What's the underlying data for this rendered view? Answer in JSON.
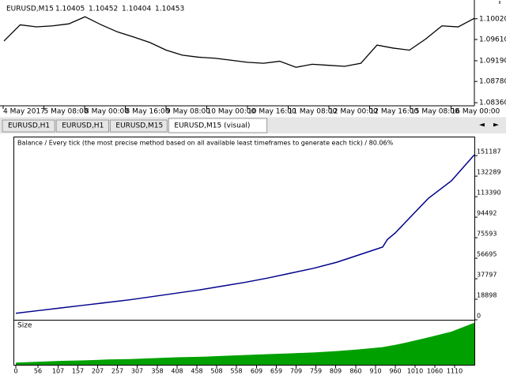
{
  "price_chart": {
    "type": "line",
    "symbol": "EURUSD,M15",
    "ohlc": [
      "1.10405",
      "1.10452",
      "1.10404",
      "1.10453"
    ],
    "values": [
      1.0958,
      1.099,
      1.0986,
      1.0988,
      1.0992,
      1.1006,
      1.099,
      1.0976,
      1.0966,
      1.0955,
      1.094,
      1.093,
      1.0926,
      1.0924,
      1.092,
      1.0916,
      1.0914,
      1.0918,
      1.0906,
      1.0912,
      1.091,
      1.0908,
      1.0914,
      1.095,
      1.0944,
      1.094,
      1.0962,
      1.0988,
      1.0986,
      1.1003
    ],
    "color": "#000000",
    "ylim": [
      1.08283,
      1.10329
    ],
    "yticks": [
      {
        "value": 1.1002,
        "label": "1.10020"
      },
      {
        "value": 1.0961,
        "label": "1.09610"
      },
      {
        "value": 1.0919,
        "label": "1.09190"
      },
      {
        "value": 1.0878,
        "label": "1.08780"
      },
      {
        "value": 1.0836,
        "label": "1.08360"
      }
    ],
    "xlabels": [
      "4 May 2017",
      "5 May 08:00",
      "8 May 00:00",
      "8 May 16:00",
      "9 May 08:00",
      "10 May 00:00",
      "10 May 16:00",
      "11 May 08:00",
      "12 May 00:00",
      "12 May 16:00",
      "15 May 08:00",
      "16 May 00:00"
    ]
  },
  "tabs": [
    "EURUSD,H1",
    "EURUSD,H1",
    "EURUSD,M15",
    "EURUSD,M15 (visual)"
  ],
  "report": {
    "type": "line",
    "title": "Balance / Every tick (the most precise method based on all available least timeframes to generate each tick) / 80.06%",
    "x": [
      0,
      58,
      116,
      174,
      232,
      290,
      348,
      406,
      464,
      522,
      580,
      638,
      696,
      754,
      812,
      870,
      928,
      940,
      960,
      986,
      1044,
      1102,
      1160
    ],
    "values": [
      6000,
      8500,
      11000,
      13500,
      16000,
      18500,
      21500,
      24500,
      27500,
      31000,
      34500,
      38500,
      43000,
      47500,
      53000,
      60000,
      67000,
      74000,
      80000,
      90000,
      112000,
      128000,
      152000
    ],
    "color": "#00008b",
    "xlim": [
      -4,
      1160
    ],
    "ylim": [
      0,
      168000
    ],
    "yticks": [
      151187,
      132289,
      113390,
      94492,
      75593,
      56695,
      37797,
      18898,
      0
    ],
    "xticks": [
      0,
      56,
      107,
      157,
      207,
      257,
      307,
      358,
      408,
      458,
      508,
      558,
      609,
      659,
      709,
      759,
      809,
      860,
      910,
      960,
      1010,
      1060,
      1110
    ],
    "size": {
      "label": "Size",
      "values": [
        5,
        7,
        9,
        10,
        12,
        13,
        15,
        17,
        18,
        20,
        22,
        24,
        26,
        28,
        31,
        35,
        40,
        42,
        45,
        50,
        62,
        75,
        95
      ],
      "color": "#00a000",
      "ylim": [
        0,
        100
      ]
    }
  }
}
